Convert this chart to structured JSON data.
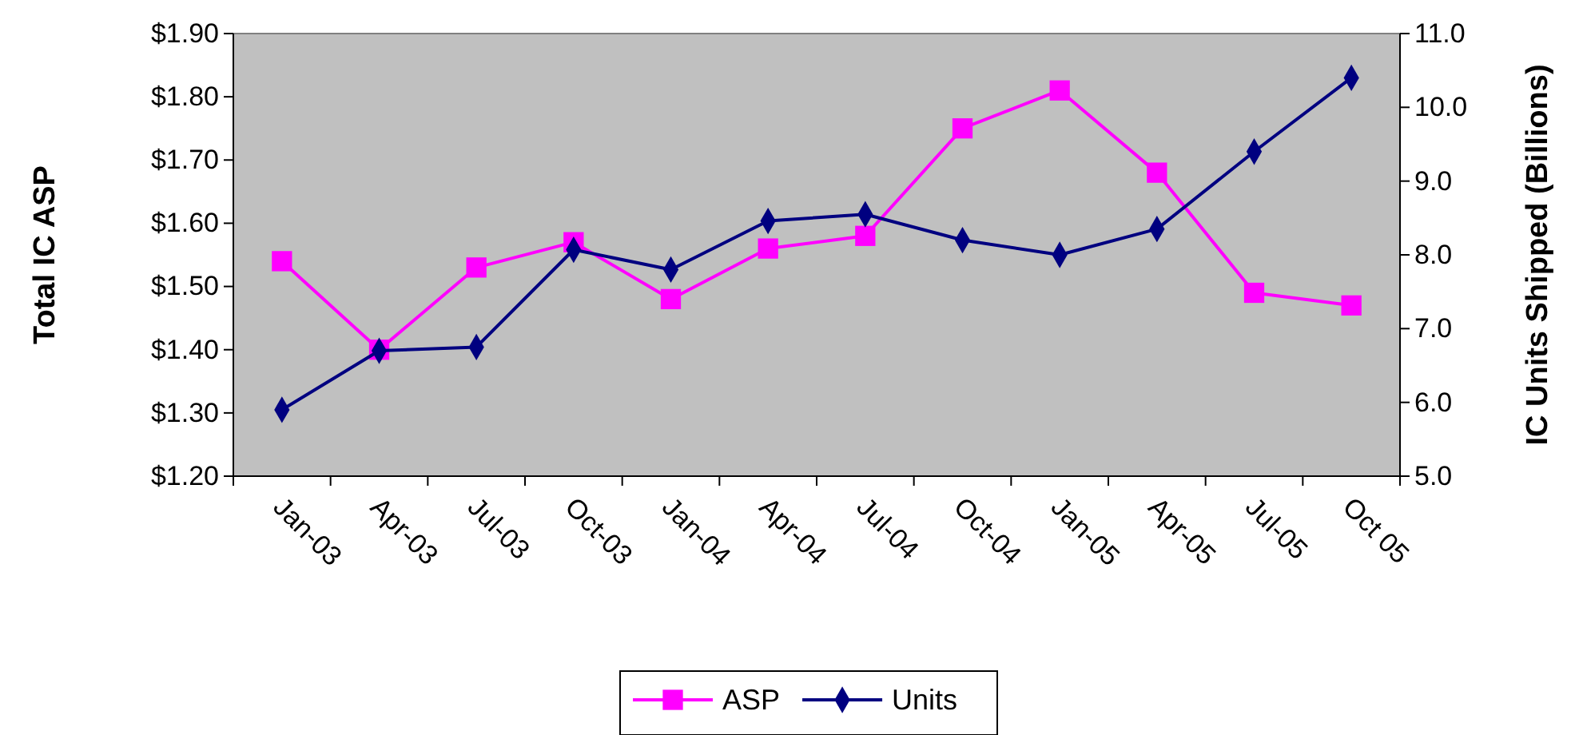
{
  "chart_data": {
    "type": "line",
    "categories": [
      "Jan-03",
      "Apr-03",
      "Jul-03",
      "Oct-03",
      "Jan-04",
      "Apr-04",
      "Jul-04",
      "Oct-04",
      "Jan-05",
      "Apr-05",
      "Jul-05",
      "Oct 05"
    ],
    "series": [
      {
        "name": "ASP",
        "color": "#ff00ff",
        "marker": "square",
        "values": [
          1.54,
          1.4,
          1.53,
          1.57,
          1.48,
          1.56,
          1.58,
          1.75,
          1.81,
          1.68,
          1.49,
          1.47
        ]
      },
      {
        "name": "Units",
        "color": "#000080",
        "marker": "diamond",
        "axis": "y2",
        "values": [
          5.9,
          6.7,
          6.75,
          8.07,
          7.8,
          8.46,
          8.55,
          8.2,
          8.0,
          8.35,
          9.4,
          10.4
        ]
      }
    ],
    "ylabel": "Total IC ASP",
    "y2label": "IC Units Shipped (Billions)",
    "ylim": [
      1.2,
      1.9
    ],
    "yticks": [
      {
        "value": 1.2,
        "label": "$1.20"
      },
      {
        "value": 1.3,
        "label": "$1.30"
      },
      {
        "value": 1.4,
        "label": "$1.40"
      },
      {
        "value": 1.5,
        "label": "$1.50"
      },
      {
        "value": 1.6,
        "label": "$1.60"
      },
      {
        "value": 1.7,
        "label": "$1.70"
      },
      {
        "value": 1.8,
        "label": "$1.80"
      },
      {
        "value": 1.9,
        "label": "$1.90"
      }
    ],
    "y2lim": [
      5,
      11
    ],
    "y2ticks": [
      {
        "value": 5,
        "label": "5.0"
      },
      {
        "value": 6,
        "label": "6.0"
      },
      {
        "value": 7,
        "label": "7.0"
      },
      {
        "value": 8,
        "label": "8.0"
      },
      {
        "value": 9,
        "label": "9.0"
      },
      {
        "value": 10,
        "label": "10.0"
      },
      {
        "value": 11,
        "label": "11.0"
      }
    ],
    "grid": false,
    "legend": "bottom",
    "line_style": "solid"
  }
}
